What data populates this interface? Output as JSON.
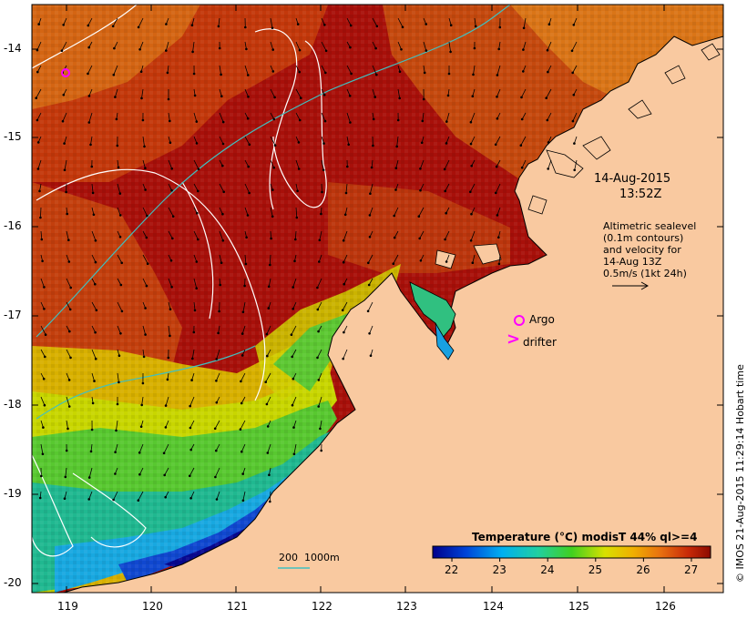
{
  "map": {
    "date": "14-Aug-2015",
    "time": "13:52Z",
    "note_lines": [
      "Altimetric sealevel",
      "(0.1m contours)",
      "and velocity for",
      "14-Aug 13Z",
      "0.5m/s (1kt 24h)"
    ],
    "legend": {
      "argo": "Argo",
      "drifter": "drifter",
      "drifter_symbol": ">"
    },
    "isobath_label": "200  1000m",
    "credit": "© IMOS 21-Aug-2015 11:29:14 Hobart time",
    "lat_ticks": [
      "-14",
      "-15",
      "-16",
      "-17",
      "-18",
      "-19",
      "-20"
    ],
    "lon_ticks": [
      "119",
      "120",
      "121",
      "122",
      "123",
      "124",
      "125",
      "126"
    ],
    "colorbar": {
      "title": "Temperature (°C) modisT 44% ql>=4",
      "ticks": [
        "22",
        "23",
        "24",
        "25",
        "26",
        "27"
      ],
      "min": 21.6,
      "max": 27.4
    },
    "colors": {
      "land": "#f9c9a0",
      "sst_hot": "#a30d00",
      "sst_warm": "#d86a10",
      "sst_yellow": "#ece000",
      "sst_green": "#2fc43a",
      "sst_cyan": "#16b0e0",
      "sst_blue": "#1030c0",
      "contour": "#ffffff",
      "isobath": "#40c0c0",
      "argo": "#ff00ff"
    }
  }
}
